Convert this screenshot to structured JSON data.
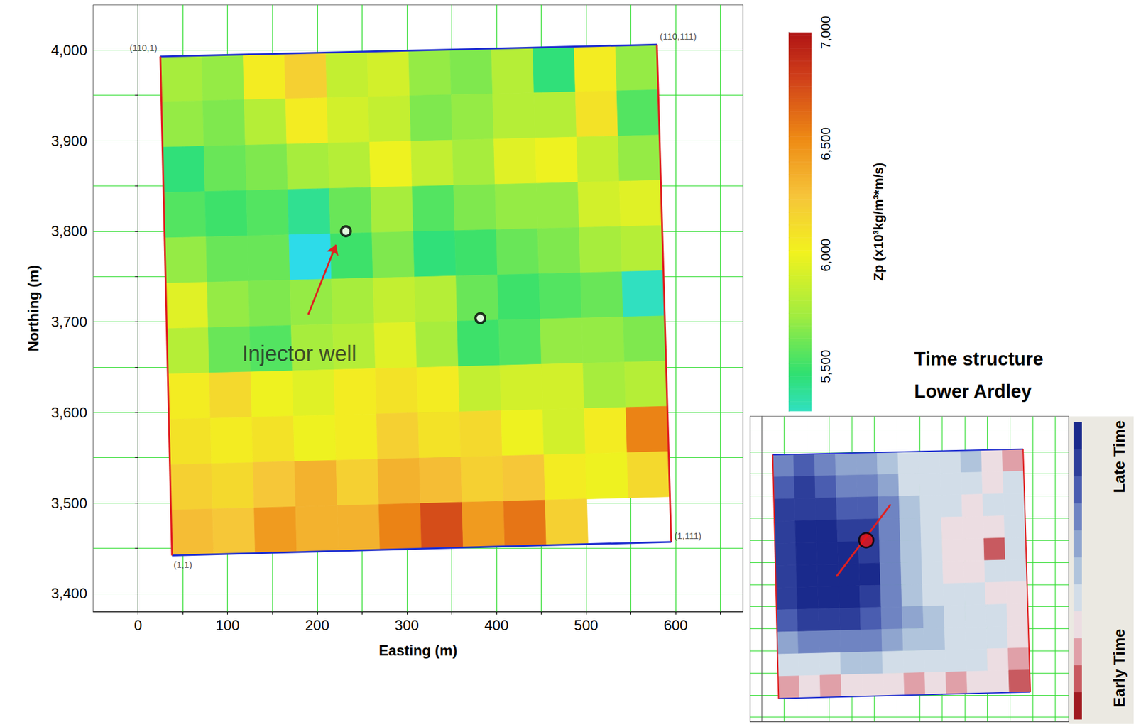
{
  "chart_data": [
    {
      "type": "heatmap",
      "xlabel": "Easting (m)",
      "ylabel": "Northing (m)",
      "xlim": [
        -50,
        675
      ],
      "xticks": [
        0,
        100,
        200,
        300,
        400,
        500,
        600
      ],
      "ylim": [
        3380,
        4050
      ],
      "yticks": [
        3400,
        3500,
        3600,
        3700,
        3800,
        3900,
        4000
      ],
      "grid": true,
      "corners": [
        {
          "label": "(110,1)",
          "easting": 25,
          "northing": 3993
        },
        {
          "label": "(110,111)",
          "easting": 579,
          "northing": 4006
        },
        {
          "label": "(1,111)",
          "easting": 595,
          "northing": 3457
        },
        {
          "label": "(1,1)",
          "easting": 38,
          "northing": 3442
        }
      ],
      "values": [
        [
          5750,
          5700,
          6050,
          6200,
          5850,
          5900,
          5700,
          5650,
          5800,
          5450,
          6050,
          5700
        ],
        [
          5700,
          5650,
          5800,
          6050,
          5900,
          5850,
          5650,
          5700,
          5800,
          5800,
          6100,
          5550
        ],
        [
          5450,
          5600,
          5650,
          5750,
          5800,
          6000,
          5850,
          5750,
          5950,
          6000,
          5850,
          5700
        ],
        [
          5550,
          5500,
          5550,
          5400,
          5600,
          5750,
          5550,
          5650,
          5700,
          5700,
          5900,
          5950
        ],
        [
          5700,
          5600,
          5600,
          5200,
          5500,
          5650,
          5450,
          5500,
          5600,
          5650,
          5750,
          5800
        ],
        [
          5950,
          5700,
          5650,
          5700,
          5750,
          5850,
          5800,
          5600,
          5500,
          5550,
          5600,
          5300
        ],
        [
          5800,
          5600,
          5550,
          5750,
          5800,
          5950,
          5750,
          5500,
          5550,
          5700,
          5700,
          5650
        ],
        [
          6050,
          6150,
          6000,
          5950,
          6050,
          6100,
          6050,
          5850,
          5900,
          5900,
          5750,
          5800
        ],
        [
          6100,
          6050,
          6100,
          6000,
          6050,
          6200,
          6100,
          6150,
          6000,
          5900,
          6050,
          6550
        ],
        [
          6200,
          6150,
          6250,
          6350,
          6200,
          6350,
          6300,
          6200,
          6250,
          6050,
          6000,
          6150
        ],
        [
          6300,
          6250,
          6450,
          6350,
          6350,
          6550,
          6750,
          6450,
          6600,
          6200,
          null,
          null
        ]
      ],
      "colorbar": {
        "label": "Zp (x10³kg/m³*m/s)",
        "range": [
          5300,
          7000
        ],
        "ticks": [
          5500,
          6000,
          6500,
          7000
        ]
      },
      "wells": [
        {
          "easting": 232,
          "northing": 3800
        },
        {
          "easting": 382,
          "northing": 3704
        }
      ],
      "annotation": {
        "text": "Injector well",
        "easting": 180,
        "northing": 3665,
        "arrow_from": [
          190,
          3708
        ],
        "arrow_to": [
          221,
          3785
        ]
      }
    },
    {
      "type": "heatmap",
      "title": [
        "Time structure",
        "Lower Ardley"
      ],
      "xlim": [
        -25,
        680
      ],
      "xticks": [
        0,
        50,
        100,
        150,
        200,
        250,
        300,
        350,
        400,
        450,
        500,
        550,
        600,
        650
      ],
      "ylim": [
        3390,
        4080
      ],
      "yticks": [
        3400,
        3450,
        3500,
        3550,
        3600,
        3650,
        3700,
        3750,
        3800,
        3850,
        3900,
        3950,
        4000,
        4050
      ],
      "grid": true,
      "tick_labels": false,
      "values": [
        [
          7,
          8,
          7,
          6,
          6,
          5,
          4,
          4,
          4,
          5,
          3,
          2
        ],
        [
          8,
          9,
          8,
          7,
          7,
          6,
          4,
          4,
          4,
          4,
          3,
          4
        ],
        [
          9,
          9,
          9,
          8,
          8,
          7,
          5,
          4,
          4,
          3,
          4,
          4
        ],
        [
          9,
          10,
          10,
          9,
          9,
          7,
          5,
          4,
          3,
          3,
          3,
          4
        ],
        [
          9,
          10,
          10,
          10,
          9,
          7,
          5,
          4,
          3,
          3,
          1,
          4
        ],
        [
          9,
          10,
          10,
          10,
          10,
          7,
          5,
          4,
          3,
          3,
          4,
          4
        ],
        [
          9,
          10,
          10,
          10,
          9,
          7,
          5,
          4,
          4,
          4,
          3,
          3
        ],
        [
          8,
          9,
          9,
          9,
          8,
          7,
          6,
          5,
          4,
          4,
          4,
          3
        ],
        [
          6,
          7,
          7,
          7,
          7,
          6,
          5,
          5,
          4,
          4,
          4,
          3
        ],
        [
          4,
          4,
          4,
          5,
          5,
          4,
          4,
          4,
          4,
          4,
          3,
          2
        ],
        [
          2,
          3,
          2,
          3,
          3,
          3,
          2,
          3,
          2,
          3,
          3,
          1
        ]
      ],
      "colorbar_labels": {
        "top": "Late Time",
        "bottom": "Early Time"
      },
      "well_marker": {
        "easting": 232,
        "northing": 3800
      },
      "section_line": [
        [
          166,
          3718
        ],
        [
          286,
          3881
        ]
      ]
    }
  ]
}
